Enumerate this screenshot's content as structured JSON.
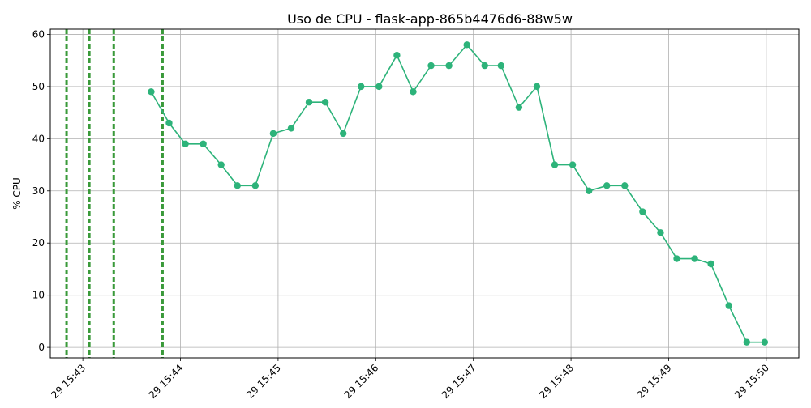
{
  "chart_data": {
    "type": "line",
    "title": "Uso de CPU - flask-app-865b4476d6-88w5w",
    "xlabel": "",
    "ylabel": "% CPU",
    "ylim": [
      -2,
      61
    ],
    "y_ticks": [
      0,
      10,
      20,
      30,
      40,
      50,
      60
    ],
    "x_axis": {
      "type": "time",
      "range": [
        "15:42:40",
        "15:50:20"
      ],
      "ticks": [
        {
          "time": "15:43:00",
          "label": "29 15:43"
        },
        {
          "time": "15:44:00",
          "label": "29 15:44"
        },
        {
          "time": "15:45:00",
          "label": "29 15:45"
        },
        {
          "time": "15:46:00",
          "label": "29 15:46"
        },
        {
          "time": "15:47:00",
          "label": "29 15:47"
        },
        {
          "time": "15:48:00",
          "label": "29 15:48"
        },
        {
          "time": "15:49:00",
          "label": "29 15:49"
        },
        {
          "time": "15:50:00",
          "label": "29 15:50"
        }
      ],
      "tick_label_rotation": 45
    },
    "grid": true,
    "line_color": "#2db37a",
    "event_line_color": "#3a9a3a",
    "event_lines": [
      "15:42:50",
      "15:43:04",
      "15:43:19",
      "15:43:49"
    ],
    "series": [
      {
        "points": [
          [
            "15:43:42",
            49
          ],
          [
            "15:43:53",
            43
          ],
          [
            "15:44:03",
            39
          ],
          [
            "15:44:14",
            39
          ],
          [
            "15:44:25",
            35
          ],
          [
            "15:44:35",
            31
          ],
          [
            "15:44:46",
            31
          ],
          [
            "15:44:57",
            41
          ],
          [
            "15:45:08",
            42
          ],
          [
            "15:45:19",
            47
          ],
          [
            "15:45:29",
            47
          ],
          [
            "15:45:40",
            41
          ],
          [
            "15:45:51",
            50
          ],
          [
            "15:46:02",
            50
          ],
          [
            "15:46:13",
            56
          ],
          [
            "15:46:23",
            49
          ],
          [
            "15:46:34",
            54
          ],
          [
            "15:46:45",
            54
          ],
          [
            "15:46:56",
            58
          ],
          [
            "15:47:07",
            54
          ],
          [
            "15:47:17",
            54
          ],
          [
            "15:47:28",
            46
          ],
          [
            "15:47:39",
            50
          ],
          [
            "15:47:50",
            35
          ],
          [
            "15:48:01",
            35
          ],
          [
            "15:48:11",
            30
          ],
          [
            "15:48:22",
            31
          ],
          [
            "15:48:33",
            31
          ],
          [
            "15:48:44",
            26
          ],
          [
            "15:48:55",
            22
          ],
          [
            "15:49:05",
            17
          ],
          [
            "15:49:16",
            17
          ],
          [
            "15:49:26",
            16
          ],
          [
            "15:49:37",
            8
          ],
          [
            "15:49:48",
            1
          ],
          [
            "15:49:59",
            1
          ]
        ]
      }
    ]
  }
}
